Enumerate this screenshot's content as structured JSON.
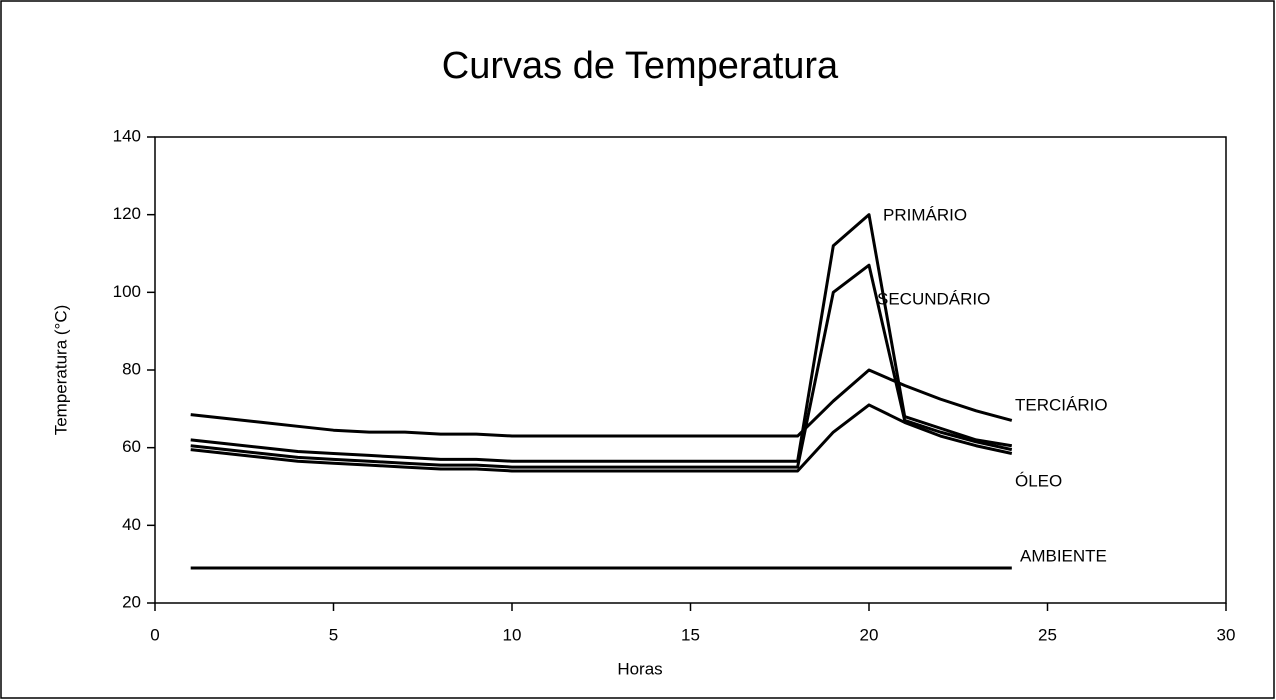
{
  "chart_data": {
    "type": "line",
    "title": "Curvas de Temperatura",
    "x_label": "Horas",
    "y_label": "Temperatura (°C)",
    "x": [
      1,
      2,
      3,
      4,
      5,
      6,
      7,
      8,
      9,
      10,
      11,
      12,
      13,
      14,
      15,
      16,
      17,
      18,
      19,
      20,
      21,
      22,
      23,
      24
    ],
    "series": [
      {
        "name": "PRIMÁRIO",
        "color": "#000000",
        "values": [
          62,
          61,
          60,
          59,
          58.5,
          58,
          57.5,
          57,
          57,
          56.5,
          56.5,
          56.5,
          56.5,
          56.5,
          56.5,
          56.5,
          56.5,
          56.5,
          112,
          120,
          68,
          65,
          62,
          60.5
        ]
      },
      {
        "name": "SECUNDÁRIO",
        "color": "#000000",
        "values": [
          60.5,
          59.5,
          58.5,
          57.5,
          57,
          56.5,
          56,
          55.5,
          55.5,
          55,
          55,
          55,
          55,
          55,
          55,
          55,
          55,
          55,
          100,
          107,
          67,
          64,
          61.5,
          59.5
        ]
      },
      {
        "name": "TERCIÁRIO",
        "color": "#000000",
        "values": [
          68.5,
          67.5,
          66.5,
          65.5,
          64.5,
          64,
          64,
          63.5,
          63.5,
          63,
          63,
          63,
          63,
          63,
          63,
          63,
          63,
          63,
          72,
          80,
          76,
          72.5,
          69.5,
          67
        ]
      },
      {
        "name": "ÓLEO",
        "color": "#000000",
        "values": [
          59.5,
          58.5,
          57.5,
          56.5,
          56,
          55.5,
          55,
          54.5,
          54.5,
          54,
          54,
          54,
          54,
          54,
          54,
          54,
          54,
          54,
          64,
          71,
          66.5,
          63,
          60.5,
          58.5
        ]
      },
      {
        "name": "AMBIENTE",
        "color": "#000000",
        "values": [
          29,
          29,
          29,
          29,
          29,
          29,
          29,
          29,
          29,
          29,
          29,
          29,
          29,
          29,
          29,
          29,
          29,
          29,
          29,
          29,
          29,
          29,
          29,
          29
        ]
      }
    ],
    "xlim": [
      0,
      30
    ],
    "xticks": [
      0,
      5,
      10,
      15,
      20,
      25,
      30
    ],
    "ylim": [
      20,
      140
    ],
    "yticks": [
      20,
      40,
      60,
      80,
      100,
      120,
      140
    ]
  }
}
